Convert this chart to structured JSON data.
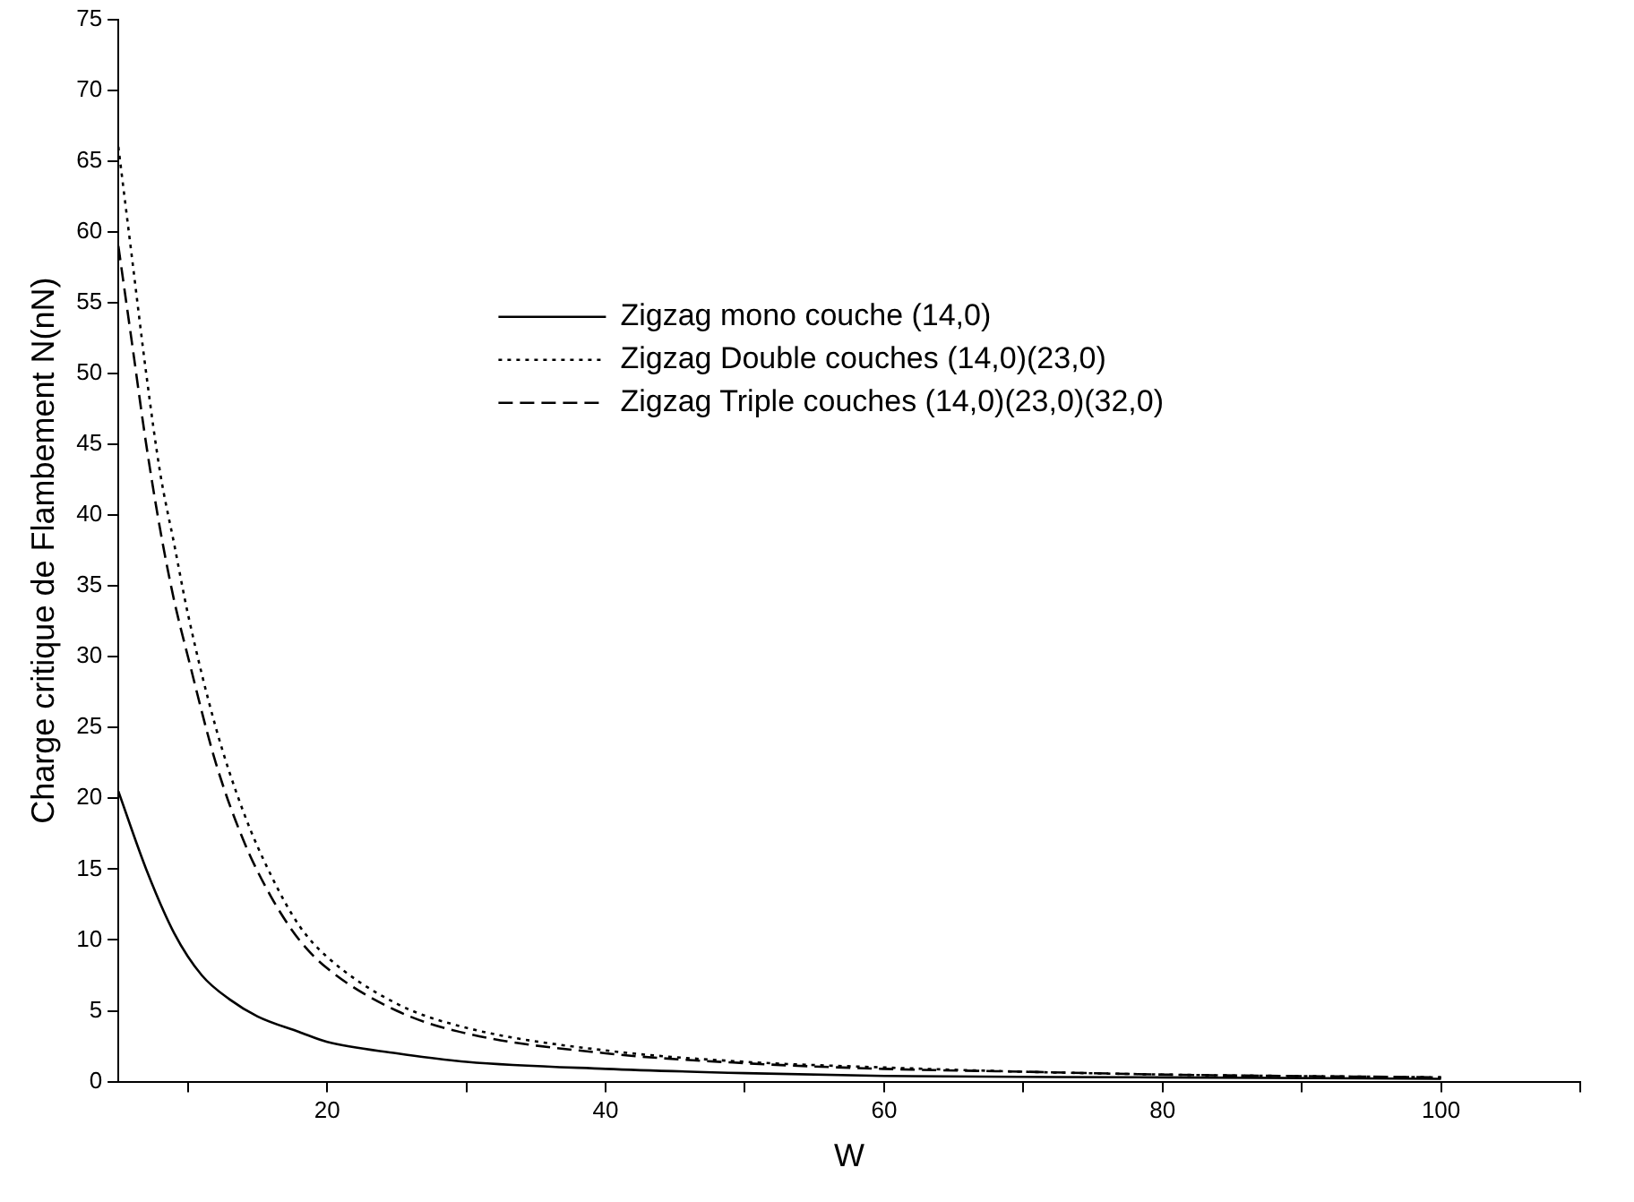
{
  "chart_data": {
    "type": "line",
    "xlabel": "W",
    "ylabel": "Charge critique de Flambement N(nN)",
    "xlim": [
      5,
      110
    ],
    "xticks": [
      {
        "value": 10,
        "label": null
      },
      20,
      {
        "value": 30,
        "label": null
      },
      40,
      {
        "value": 50,
        "label": null
      },
      60,
      {
        "value": 70,
        "label": null
      },
      80,
      {
        "value": 90,
        "label": null
      },
      100,
      {
        "value": 110,
        "label": null
      }
    ],
    "ylim": [
      0,
      75
    ],
    "yticks": [
      0,
      5,
      10,
      15,
      20,
      25,
      30,
      35,
      40,
      45,
      50,
      55,
      60,
      65,
      70,
      75
    ],
    "grid": false,
    "legend": "top right",
    "marker": "none",
    "series": [
      {
        "name": "Zigzag mono couche (14,0)",
        "color": "#000000",
        "line_style": "solid",
        "x": [
          5,
          7,
          9,
          11,
          13,
          15,
          18,
          20,
          25,
          30,
          40,
          50,
          60,
          80,
          100
        ],
        "values": [
          20.5,
          15,
          10.5,
          7.5,
          5.8,
          4.6,
          3.5,
          2.8,
          2,
          1.4,
          0.9,
          0.6,
          0.4,
          0.3,
          0.2
        ]
      },
      {
        "name": "Zigzag Double couches (14,0)(23,0)",
        "color": "#000000",
        "line_style": "dotted",
        "x": [
          5,
          6,
          7,
          8,
          9,
          10,
          12,
          14,
          16,
          18,
          20,
          25,
          30,
          40,
          50,
          60,
          70,
          80,
          100
        ],
        "values": [
          66,
          58,
          50,
          43,
          38,
          33,
          25,
          19,
          14.5,
          11,
          8.8,
          5.5,
          3.8,
          2.2,
          1.4,
          1,
          0.7,
          0.5,
          0.3
        ]
      },
      {
        "name": "Zigzag Triple couches (14,0)(23,0)(32,0)",
        "color": "#000000",
        "line_style": "dashed",
        "x": [
          5,
          6,
          7,
          8,
          9,
          10,
          12,
          14,
          16,
          18,
          20,
          25,
          30,
          40,
          50,
          60,
          70,
          80,
          100
        ],
        "values": [
          59,
          52,
          45,
          39,
          34,
          30,
          22.5,
          17,
          13,
          10,
          8,
          5,
          3.4,
          2,
          1.3,
          0.9,
          0.7,
          0.5,
          0.3
        ]
      }
    ]
  }
}
